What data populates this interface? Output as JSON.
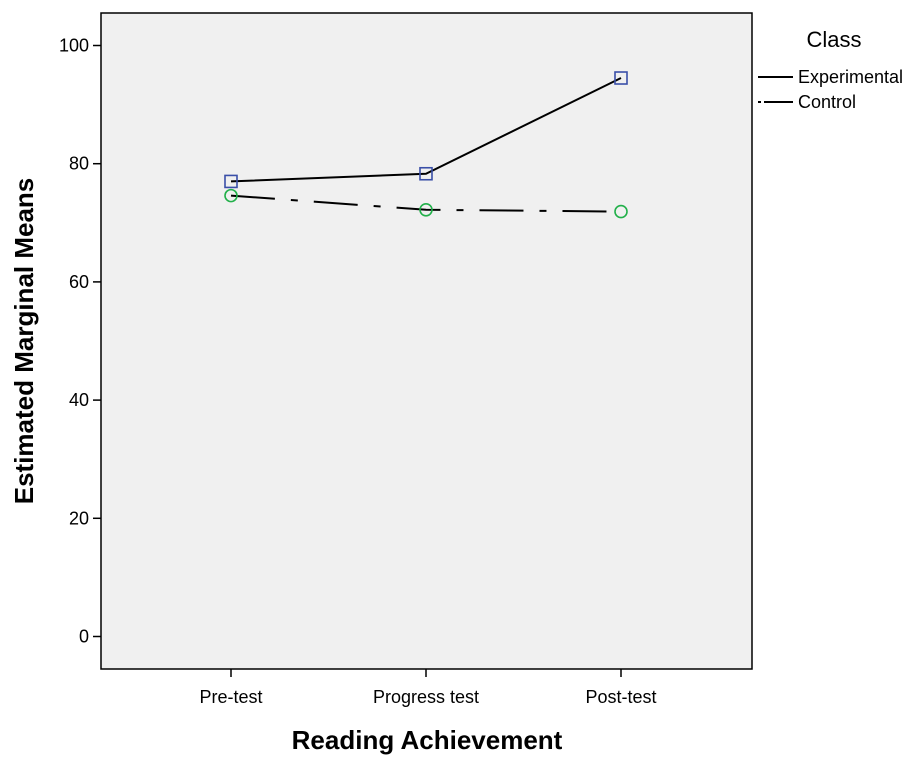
{
  "chart_data": {
    "type": "line",
    "title": "",
    "xlabel": "Reading Achievement",
    "ylabel": "Estimated Marginal Means",
    "categories": [
      "Pre-test",
      "Progress test",
      "Post-test"
    ],
    "ylim": [
      -5.5,
      105.5
    ],
    "yticks": [
      0,
      20,
      40,
      60,
      80,
      100
    ],
    "grid": false,
    "legend": {
      "title": "Class",
      "position": "right"
    },
    "series": [
      {
        "name": "Experimental",
        "values": [
          77.0,
          78.3,
          94.5
        ],
        "line_style": "solid",
        "marker": "square",
        "marker_color": "#3a4fa8"
      },
      {
        "name": "Control",
        "values": [
          74.6,
          72.2,
          71.9
        ],
        "line_style": "dash-dot",
        "marker": "circle",
        "marker_color": "#22b04a"
      }
    ],
    "colors": {
      "plot_background": "#f0f0f0",
      "line": "#000000"
    }
  }
}
